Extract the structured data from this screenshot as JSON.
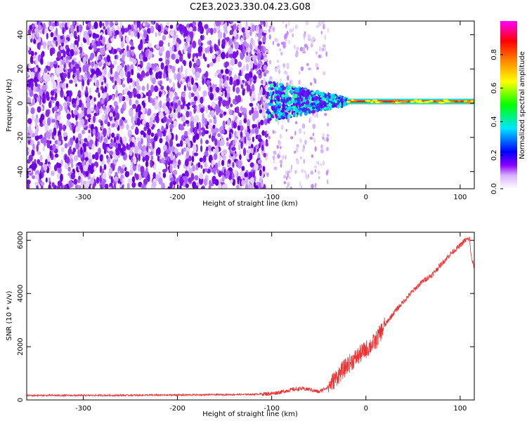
{
  "title": "C2E3.2023.330.04.23.G08",
  "chart_data": [
    {
      "type": "heatmap",
      "xlabel": "Height of straight line (km)",
      "ylabel": "Frequency (Hz)",
      "xlim": [
        -360,
        115
      ],
      "ylim": [
        -50,
        48
      ],
      "x_ticks": [
        -300,
        -200,
        -100,
        0,
        100
      ],
      "y_ticks": [
        -40,
        -20,
        0,
        20,
        40
      ],
      "colorbar": {
        "label": "Normalized spectral amplitude",
        "range": [
          0,
          1
        ],
        "ticks": [
          "0.0",
          "0.2",
          "0.4",
          "0.6",
          "0.8"
        ],
        "colors": [
          "#ffffff",
          "#d8b0ff",
          "#8a00ff",
          "#0000ff",
          "#00e5ff",
          "#00ff00",
          "#ffff00",
          "#ff8800",
          "#ff0000",
          "#ff00ff"
        ]
      },
      "features": {
        "noise_region_x": [
          -360,
          -105
        ],
        "transition_x": [
          -105,
          -20
        ],
        "carrier_line_x": [
          -20,
          115
        ],
        "carrier_freq_hz": 1,
        "carrier_amplitude": 0.9
      }
    },
    {
      "type": "line",
      "xlabel": "Height of straight line (km)",
      "ylabel": "SNR (10 * v/v)",
      "xlim": [
        -360,
        115
      ],
      "ylim": [
        0,
        6300
      ],
      "x_ticks": [
        -300,
        -200,
        -100,
        0,
        100
      ],
      "y_ticks": [
        0,
        2000,
        4000,
        6000
      ],
      "color": "#f03030",
      "x": [
        -360,
        -300,
        -200,
        -150,
        -120,
        -100,
        -90,
        -80,
        -70,
        -60,
        -50,
        -40,
        -30,
        -20,
        -10,
        0,
        10,
        20,
        30,
        40,
        50,
        60,
        70,
        80,
        90,
        100,
        105,
        110,
        112,
        115
      ],
      "y": [
        170,
        170,
        185,
        200,
        210,
        240,
        300,
        380,
        420,
        400,
        300,
        500,
        900,
        1300,
        1600,
        1900,
        2200,
        2800,
        3300,
        3700,
        4100,
        4450,
        4700,
        5100,
        5500,
        5800,
        6000,
        6050,
        5300,
        5000
      ]
    }
  ]
}
